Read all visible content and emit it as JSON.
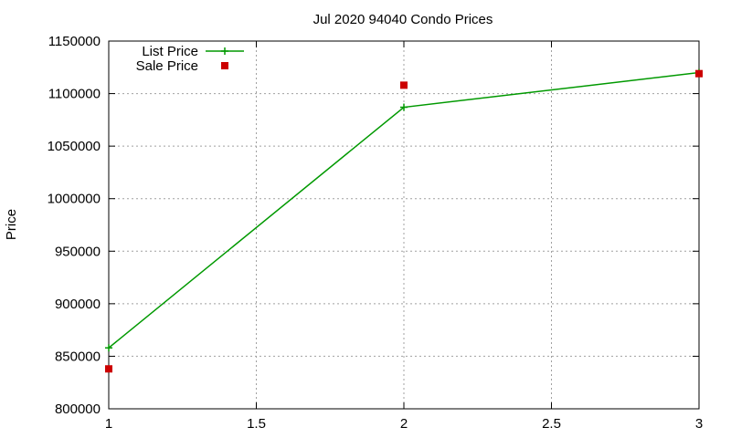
{
  "chart_data": {
    "type": "line",
    "title": "Jul 2020 94040 Condo Prices",
    "xlabel": "",
    "ylabel": "Price",
    "xlim": [
      1,
      3
    ],
    "ylim": [
      800000,
      1150000
    ],
    "xticks": [
      1,
      1.5,
      2,
      2.5,
      3
    ],
    "yticks": [
      800000,
      850000,
      900000,
      950000,
      1000000,
      1050000,
      1100000,
      1150000
    ],
    "xtick_labels": [
      "1",
      "1.5",
      "2",
      "2.5",
      "3"
    ],
    "ytick_labels": [
      "800000",
      "850000",
      "900000",
      "950000",
      "1000000",
      "1050000",
      "1100000",
      "1150000"
    ],
    "grid": true,
    "legend_position": "top-left",
    "series": [
      {
        "name": "List Price",
        "style": "lines+points",
        "marker": "plus",
        "color": "#009900",
        "x": [
          1,
          2,
          3
        ],
        "y": [
          858000,
          1087000,
          1120000
        ]
      },
      {
        "name": "Sale Price",
        "style": "points",
        "marker": "square",
        "color": "#cc0000",
        "x": [
          1,
          2,
          3
        ],
        "y": [
          838000,
          1108000,
          1119000
        ]
      }
    ]
  }
}
